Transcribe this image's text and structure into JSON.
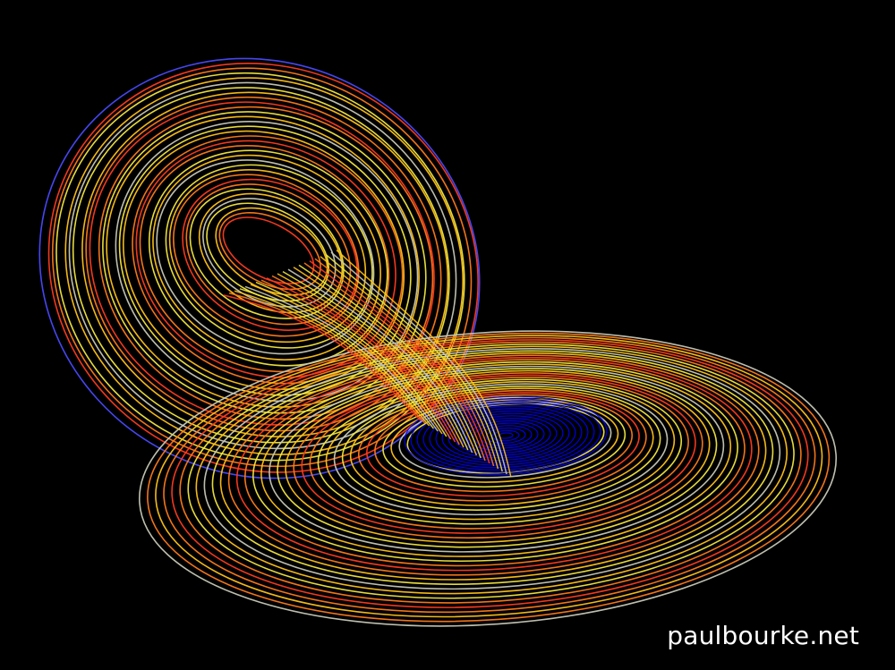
{
  "image": {
    "subject": "lorenz-attractor",
    "background_color": "#000000",
    "palette": [
      "#4a4aff",
      "#ff3b1f",
      "#ff7a1a",
      "#ffc21a",
      "#f2e640",
      "#c8c8b8",
      "#0000ff"
    ],
    "core_color": "#0000ff"
  },
  "watermark": {
    "text": "paulbourke.net",
    "color": "#ffffff"
  }
}
